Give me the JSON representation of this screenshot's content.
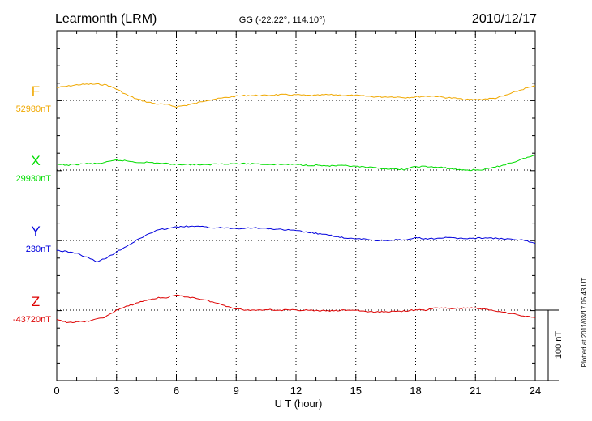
{
  "header": {
    "station": "Learmonth (LRM)",
    "coords": "GG (-22.22°, 114.10°)",
    "date": "2010/12/17"
  },
  "side_note": "Plotted at 2011/03/17 05:43 UT",
  "scale_label": "100 nT",
  "chart_data": {
    "type": "line",
    "xlabel": "U T (hour)",
    "xlim": [
      0,
      24
    ],
    "xticks": [
      "0",
      "3",
      "6",
      "9",
      "12",
      "15",
      "18",
      "21",
      "24"
    ],
    "y_units_per_trace": "nT",
    "scale_bar_nT": 100,
    "series": [
      {
        "name": "F",
        "baseline_label": "52980nT",
        "color": "#f0a800",
        "x": [
          0,
          0.5,
          1,
          1.5,
          2,
          2.5,
          3,
          3.5,
          4,
          4.5,
          5,
          5.5,
          6,
          6.5,
          7,
          7.5,
          8,
          8.5,
          9,
          9.5,
          10,
          10.5,
          11,
          11.5,
          12,
          12.5,
          13,
          13.5,
          14,
          14.5,
          15,
          15.5,
          16,
          16.5,
          17,
          17.5,
          18,
          18.5,
          19,
          19.5,
          20,
          20.5,
          21,
          21.5,
          22,
          22.5,
          23,
          23.5,
          24
        ],
        "values": [
          18,
          20,
          22,
          23,
          23,
          22,
          16,
          8,
          2,
          -2,
          -5,
          -6,
          -9,
          -7,
          -4,
          0,
          2,
          4,
          6,
          7,
          7,
          7,
          8,
          8,
          8,
          7,
          7,
          8,
          8,
          7,
          7,
          6,
          5,
          5,
          5,
          4,
          5,
          6,
          6,
          4,
          3,
          1,
          1,
          2,
          3,
          7,
          12,
          17,
          20
        ]
      },
      {
        "name": "X",
        "baseline_label": "29930nT",
        "color": "#00dd00",
        "x": [
          0,
          0.5,
          1,
          1.5,
          2,
          2.5,
          3,
          3.5,
          4,
          4.5,
          5,
          5.5,
          6,
          6.5,
          7,
          7.5,
          8,
          8.5,
          9,
          9.5,
          10,
          10.5,
          11,
          11.5,
          12,
          12.5,
          13,
          13.5,
          14,
          14.5,
          15,
          15.5,
          16,
          16.5,
          17,
          17.5,
          18,
          18.5,
          19,
          19.5,
          20,
          20.5,
          21,
          21.5,
          22,
          22.5,
          23,
          23.5,
          24
        ],
        "values": [
          8,
          7,
          8,
          9,
          9,
          11,
          14,
          13,
          11,
          11,
          10,
          9,
          8,
          8,
          8,
          7,
          9,
          9,
          9,
          9,
          9,
          8,
          8,
          8,
          8,
          7,
          7,
          6,
          6,
          6,
          5,
          4,
          3,
          2,
          1,
          1,
          5,
          5,
          4,
          3,
          1,
          0,
          0,
          1,
          4,
          8,
          12,
          17,
          21
        ]
      },
      {
        "name": "Y",
        "baseline_label": "230nT",
        "color": "#0000dd",
        "x": [
          0,
          0.5,
          1,
          1.5,
          2,
          2.5,
          3,
          3.5,
          4,
          4.5,
          5,
          5.5,
          6,
          6.5,
          7,
          7.5,
          8,
          8.5,
          9,
          9.5,
          10,
          10.5,
          11,
          11.5,
          12,
          12.5,
          13,
          13.5,
          14,
          14.5,
          15,
          15.5,
          16,
          16.5,
          17,
          17.5,
          18,
          18.5,
          19,
          19.5,
          20,
          20.5,
          21,
          21.5,
          22,
          22.5,
          23,
          23.5,
          24
        ],
        "values": [
          -14,
          -16,
          -18,
          -24,
          -30,
          -25,
          -16,
          -8,
          0,
          8,
          14,
          17,
          19,
          20,
          20,
          19,
          18,
          18,
          17,
          18,
          18,
          17,
          16,
          15,
          14,
          12,
          10,
          8,
          6,
          3,
          2,
          2,
          0,
          0,
          1,
          0,
          4,
          2,
          3,
          4,
          3,
          3,
          3,
          4,
          3,
          2,
          1,
          0,
          -4
        ]
      },
      {
        "name": "Z",
        "baseline_label": "-43720nT",
        "color": "#dd0000",
        "x": [
          0,
          0.5,
          1,
          1.5,
          2,
          2.5,
          3,
          3.5,
          4,
          4.5,
          5,
          5.5,
          6,
          6.5,
          7,
          7.5,
          8,
          8.5,
          9,
          9.5,
          10,
          10.5,
          11,
          11.5,
          12,
          12.5,
          13,
          13.5,
          14,
          14.5,
          15,
          15.5,
          16,
          16.5,
          17,
          17.5,
          18,
          18.5,
          19,
          19.5,
          20,
          20.5,
          21,
          21.5,
          22,
          22.5,
          23,
          23.5,
          24
        ],
        "values": [
          -14,
          -17,
          -17,
          -16,
          -13,
          -9,
          0,
          5,
          10,
          14,
          17,
          18,
          21,
          19,
          17,
          14,
          10,
          6,
          2,
          0,
          0,
          1,
          0,
          0,
          0,
          0,
          -1,
          -1,
          -1,
          0,
          0,
          -2,
          -3,
          -2,
          -2,
          -1,
          0,
          0,
          3,
          3,
          2,
          3,
          3,
          1,
          -1,
          -3,
          -6,
          -9,
          -10
        ]
      }
    ]
  }
}
